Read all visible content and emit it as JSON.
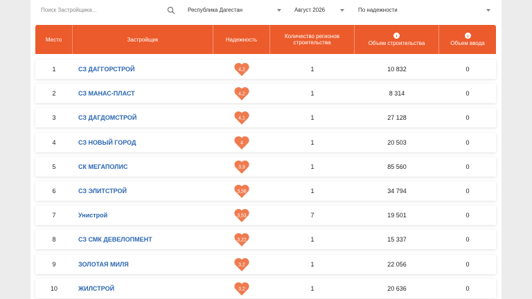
{
  "filters": {
    "search_placeholder": "Поиск Застройщика...",
    "region": "Республика Дагестан",
    "month": "Август 2026",
    "sort": "По надежности"
  },
  "table": {
    "headers": [
      "Место",
      "Застройщик",
      "Надежность",
      "Количество регионов строительства",
      "Объем строительства",
      "Объем ввода"
    ],
    "rows": [
      [
        "1",
        "СЗ ДАГГОРСТРОЙ",
        "4,2",
        "1",
        "10 832",
        "0"
      ],
      [
        "2",
        "СЗ МАНАС-ПЛАСТ",
        "4,2",
        "1",
        "8 314",
        "0"
      ],
      [
        "3",
        "СЗ ДАГДОМСТРОЙ",
        "4,1",
        "1",
        "27 128",
        "0"
      ],
      [
        "4",
        "СЗ НОВЫЙ ГОРОД",
        "4",
        "1",
        "20 503",
        "0"
      ],
      [
        "5",
        "СК МЕГАПОЛИС",
        "3,9",
        "1",
        "85 560",
        "0"
      ],
      [
        "6",
        "СЗ ЭЛИТСТРОЙ",
        "3,58",
        "1",
        "34 794",
        "0"
      ],
      [
        "7",
        "Унистрой",
        "3,53",
        "7",
        "19 501",
        "0"
      ],
      [
        "8",
        "СЗ СМК ДЕВЕЛОПМЕНТ",
        "3,22",
        "1",
        "15 337",
        "0"
      ],
      [
        "9",
        "ЗОЛОТАЯ МИЛЯ",
        "3,2",
        "1",
        "22 056",
        "0"
      ],
      [
        "10",
        "ЖИЛСТРОЙ",
        "3,2",
        "1",
        "20 636",
        "0"
      ]
    ]
  }
}
